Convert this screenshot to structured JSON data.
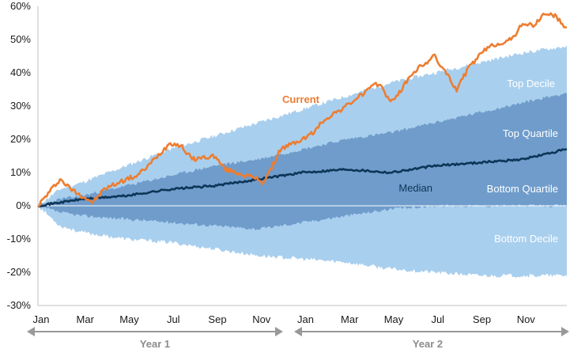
{
  "chart_data": {
    "type": "area",
    "ylim": [
      -0.3,
      0.6
    ],
    "yticks": [
      0.6,
      0.5,
      0.4,
      0.3,
      0.2,
      0.1,
      0.0,
      -0.1,
      -0.2,
      -0.3
    ],
    "ytick_labels": [
      "60%",
      "50%",
      "40%",
      "30%",
      "20%",
      "10%",
      "0%",
      "-10%",
      "-20%",
      "-30%"
    ],
    "x_months": [
      0,
      24
    ],
    "xtick_labels": [
      "Jan",
      "Mar",
      "May",
      "Jul",
      "Sep",
      "Nov",
      "Jan",
      "Mar",
      "May",
      "Jul",
      "Sep",
      "Nov"
    ],
    "xtick_months": [
      0,
      2,
      4,
      6,
      8,
      10,
      12,
      14,
      16,
      18,
      20,
      22
    ],
    "year_labels": [
      "Year 1",
      "Year 2"
    ],
    "colors": {
      "decile_band": "#a9cfee",
      "quartile_band": "#6f9ccb",
      "current": "#ed7d31",
      "median": "#0d3557",
      "arrow": "#999999",
      "axis": "#bfbfbf"
    },
    "band_labels": {
      "top_decile": "Top Decile",
      "top_quartile": "Top Quartile",
      "bottom_quartile": "Bottom Quartile",
      "bottom_decile": "Bottom Decile"
    },
    "series_labels": {
      "current": "Current",
      "median": "Median"
    },
    "series": [
      {
        "name": "Top Decile",
        "x": [
          0,
          1,
          2,
          4,
          6,
          8,
          10,
          12,
          14,
          16,
          18,
          20,
          22,
          24
        ],
        "values": [
          0,
          0.05,
          0.07,
          0.12,
          0.17,
          0.21,
          0.25,
          0.29,
          0.33,
          0.37,
          0.4,
          0.43,
          0.46,
          0.48
        ]
      },
      {
        "name": "Top Quartile",
        "x": [
          0,
          1,
          2,
          4,
          6,
          8,
          10,
          12,
          14,
          16,
          18,
          20,
          22,
          24
        ],
        "values": [
          0,
          0.02,
          0.03,
          0.06,
          0.09,
          0.12,
          0.14,
          0.17,
          0.2,
          0.22,
          0.25,
          0.28,
          0.31,
          0.34
        ]
      },
      {
        "name": "Median",
        "x": [
          0,
          1,
          2,
          4,
          6,
          8,
          10,
          12,
          14,
          16,
          18,
          20,
          22,
          24
        ],
        "values": [
          0,
          0.01,
          0.02,
          0.03,
          0.05,
          0.06,
          0.08,
          0.1,
          0.11,
          0.1,
          0.12,
          0.13,
          0.14,
          0.17
        ]
      },
      {
        "name": "Bottom Quartile",
        "x": [
          0,
          1,
          2,
          4,
          6,
          8,
          10,
          12,
          14,
          16,
          18,
          20,
          22,
          24
        ],
        "values": [
          0,
          -0.02,
          -0.03,
          -0.04,
          -0.05,
          -0.06,
          -0.07,
          -0.05,
          -0.03,
          -0.01,
          0.0,
          0.0,
          0.0,
          0.0
        ]
      },
      {
        "name": "Bottom Decile",
        "x": [
          0,
          1,
          2,
          4,
          6,
          8,
          10,
          12,
          14,
          16,
          18,
          20,
          22,
          24
        ],
        "values": [
          0,
          -0.06,
          -0.08,
          -0.1,
          -0.11,
          -0.13,
          -0.15,
          -0.16,
          -0.17,
          -0.19,
          -0.2,
          -0.21,
          -0.21,
          -0.21
        ]
      },
      {
        "name": "Current",
        "x": [
          0,
          0.5,
          1,
          1.5,
          2,
          2.5,
          3,
          4,
          4.5,
          5,
          6,
          6.5,
          7,
          8,
          8.5,
          9,
          10,
          10.2,
          10.5,
          11,
          12,
          12.5,
          13,
          14,
          15,
          15.5,
          16,
          16.5,
          17,
          18,
          18.5,
          19,
          19.5,
          20,
          20.5,
          21,
          21.5,
          22,
          22.5,
          23,
          23.5,
          24
        ],
        "values": [
          0,
          0.04,
          0.08,
          0.05,
          0.03,
          0.01,
          0.05,
          0.08,
          0.09,
          0.12,
          0.19,
          0.18,
          0.14,
          0.15,
          0.11,
          0.1,
          0.08,
          0.07,
          0.1,
          0.17,
          0.2,
          0.22,
          0.26,
          0.3,
          0.35,
          0.37,
          0.31,
          0.35,
          0.4,
          0.45,
          0.4,
          0.35,
          0.41,
          0.45,
          0.48,
          0.49,
          0.5,
          0.55,
          0.54,
          0.58,
          0.57,
          0.53
        ]
      }
    ]
  }
}
